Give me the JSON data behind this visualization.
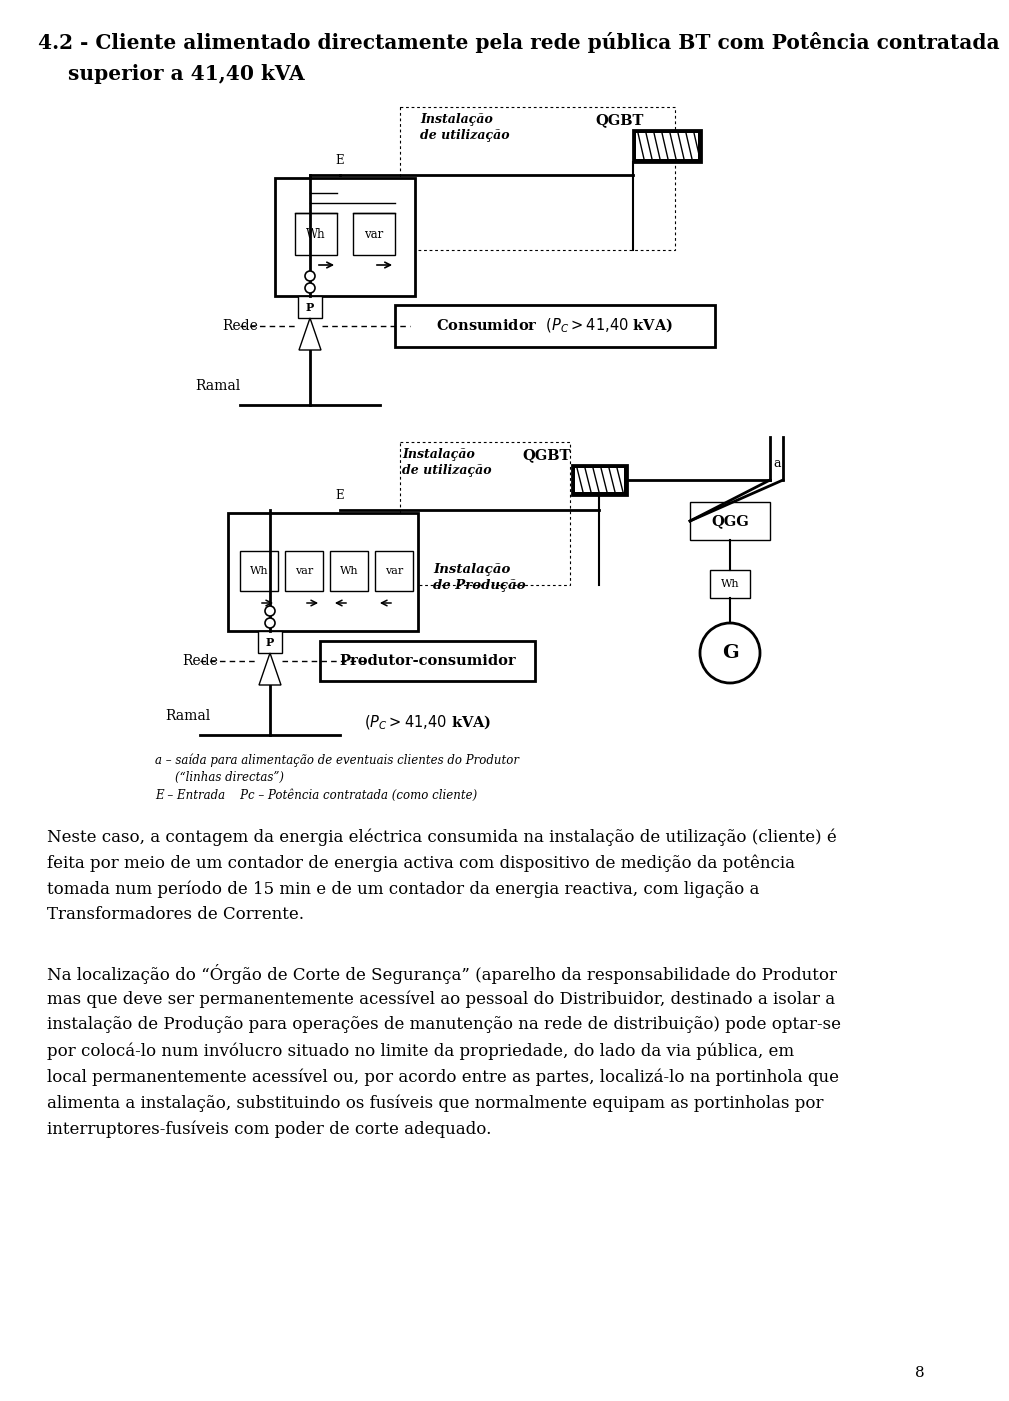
{
  "title_line1": "4.2 - Cliente alimentado directamente pela rede pública BT com Potência contratada",
  "title_line2": "superior a 41,40 kVA",
  "paragraph1_lines": [
    "Neste caso, a contagem da energia eléctrica consumida na instalação de utilização (cliente) é",
    "feita por meio de um contador de energia activa com dispositivo de medição da potência",
    "tomada num período de 15 min e de um contador da energia reactiva, com ligação a",
    "Transformadores de Corrente."
  ],
  "paragraph2_lines": [
    "Na localização do “Órgão de Corte de Segurança” (aparelho da responsabilidade do Produtor",
    "mas que deve ser permanentemente acessível ao pessoal do Distribuidor, destinado a isolar a",
    "instalação de Produção para operações de manutenção na rede de distribuição) pode optar-se",
    "por colocá-lo num invólucro situado no limite da propriedade, do lado da via pública, em",
    "local permanentemente acessível ou, por acordo entre as partes, localizá-lo na portinhola que",
    "alimenta a instalação, substituindo os fusíveis que normalmente equipam as portinholas por",
    "interruptores-fusíveis com poder de corte adequado."
  ],
  "footnote1": "a – saída para alimentação de eventuais clientes do Produtor",
  "footnote2": "(“linhas directas”)",
  "footnote3": "E – Entrada    Pc – Potência contratada (como cliente)",
  "page_number": "8",
  "bg_color": "#ffffff",
  "text_color": "#000000"
}
